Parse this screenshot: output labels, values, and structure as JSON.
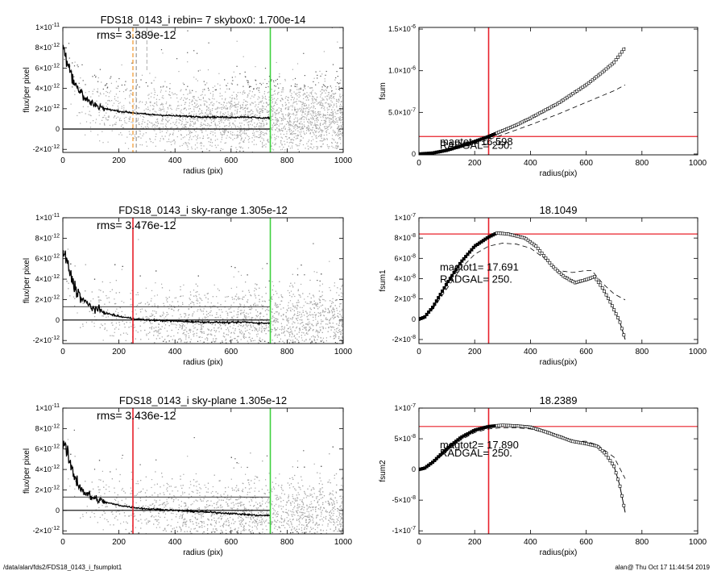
{
  "colors": {
    "scatter": "#a8a8a8",
    "profile": "#000000",
    "red": "#e8202a",
    "green": "#3ed13e",
    "orange": "#f0952a"
  },
  "footer": {
    "left": "/data/alan/fds2/FDS18_0143_i_fsumplot1",
    "right": "alan@  Thu Oct 17 11:44:54 2019"
  },
  "chart_data": [
    {
      "id": "p1",
      "type": "scatter",
      "title": "FDS18_0143_i rebin= 7   skybox0:  1.700e-14",
      "annotation": "rms= 3.389e-12",
      "xlabel": "radius (pix)",
      "ylabel": "flux/per pixel",
      "xlim": [
        0,
        1000
      ],
      "ylim": [
        -2.3e-12,
        1e-11
      ],
      "xticks": [
        0,
        200,
        400,
        600,
        800,
        1000
      ],
      "yticks": [
        {
          "v": -2e-12,
          "m": "-2",
          "e": "-12"
        },
        {
          "v": 0,
          "m": "0",
          "e": ""
        },
        {
          "v": 2e-12,
          "m": "2",
          "e": "-12"
        },
        {
          "v": 4e-12,
          "m": "4",
          "e": "-12"
        },
        {
          "v": 6e-12,
          "m": "6",
          "e": "-12"
        },
        {
          "v": 8e-12,
          "m": "8",
          "e": "-12"
        },
        {
          "v": 1e-11,
          "m": "1",
          "e": "-11",
          "p": "10"
        }
      ],
      "profile": [
        [
          0,
          8e-12
        ],
        [
          5,
          7.7e-12
        ],
        [
          10,
          7.3e-12
        ],
        [
          20,
          6.5e-12
        ],
        [
          30,
          5.5e-12
        ],
        [
          40,
          4.7e-12
        ],
        [
          60,
          3.7e-12
        ],
        [
          80,
          3e-12
        ],
        [
          100,
          2.6e-12
        ],
        [
          150,
          2e-12
        ],
        [
          200,
          1.75e-12
        ],
        [
          250,
          1.6e-12
        ],
        [
          300,
          1.45e-12
        ],
        [
          400,
          1.3e-12
        ],
        [
          500,
          1.2e-12
        ],
        [
          600,
          1.15e-12
        ],
        [
          650,
          1.2e-12
        ],
        [
          700,
          1.1e-12
        ],
        [
          740,
          1.1e-12
        ]
      ],
      "hlines": [
        {
          "y": 0,
          "color": "#000000",
          "x0": 0,
          "x1": 740
        }
      ],
      "vlines": [
        {
          "x": 740,
          "color": "#3ed13e"
        },
        {
          "x": 250,
          "color": "#f0952a",
          "dash": true
        },
        {
          "x": 262,
          "color": "#999999",
          "dash": true
        },
        {
          "x": 300,
          "color": "#bbbbbb",
          "dash": true,
          "short": true
        }
      ]
    },
    {
      "id": "p2",
      "type": "line",
      "xlabel": "radius(pix)",
      "ylabel": "fsum",
      "xlim": [
        0,
        1000
      ],
      "ylim": [
        -1e-08,
        1.52e-06
      ],
      "xticks": [
        0,
        200,
        400,
        600,
        800,
        1000
      ],
      "yticks": [
        {
          "v": 0,
          "m": "0",
          "e": ""
        },
        {
          "v": 5e-07,
          "m": "5.0",
          "e": "-7"
        },
        {
          "v": 1e-06,
          "m": "1.0",
          "e": "-6"
        },
        {
          "v": 1.5e-06,
          "m": "1.5",
          "e": "-6"
        }
      ],
      "solid": [
        [
          0,
          0
        ],
        [
          50,
          1.2e-08
        ],
        [
          100,
          4.5e-08
        ],
        [
          150,
          9.5e-08
        ],
        [
          200,
          1.5e-07
        ],
        [
          250,
          2.1e-07
        ],
        [
          300,
          2.8e-07
        ],
        [
          350,
          3.5e-07
        ],
        [
          400,
          4.3e-07
        ],
        [
          450,
          5.2e-07
        ],
        [
          500,
          6.1e-07
        ],
        [
          550,
          7.2e-07
        ],
        [
          600,
          8.3e-07
        ],
        [
          650,
          9.6e-07
        ],
        [
          700,
          1.1e-06
        ],
        [
          740,
          1.28e-06
        ]
      ],
      "dashed": [
        [
          0,
          0
        ],
        [
          100,
          3.5e-08
        ],
        [
          200,
          1.2e-07
        ],
        [
          300,
          2.3e-07
        ],
        [
          400,
          3.5e-07
        ],
        [
          500,
          4.8e-07
        ],
        [
          600,
          6.2e-07
        ],
        [
          700,
          7.6e-07
        ],
        [
          740,
          8.3e-07
        ]
      ],
      "hlines": [
        {
          "y": 2.1e-07,
          "color": "#e8202a"
        }
      ],
      "vlines": [
        {
          "x": 250,
          "color": "#e8202a"
        }
      ],
      "labels": [
        {
          "text": "magtot=  16.598",
          "x": 75,
          "y": 1.05e-07
        },
        {
          "text": "RADGAL=    250.",
          "x": 75,
          "y": 6.5e-08
        }
      ]
    },
    {
      "id": "p3",
      "type": "scatter",
      "title": "FDS18_0143_i sky-range  1.305e-12",
      "annotation": "rms= 3.476e-12",
      "xlabel": "radius (pix)",
      "ylabel": "flux/per pixel",
      "xlim": [
        0,
        1000
      ],
      "ylim": [
        -2.3e-12,
        1e-11
      ],
      "xticks": [
        0,
        200,
        400,
        600,
        800,
        1000
      ],
      "yticks": [
        {
          "v": -2e-12,
          "m": "-2",
          "e": "-12"
        },
        {
          "v": 0,
          "m": "0",
          "e": ""
        },
        {
          "v": 2e-12,
          "m": "2",
          "e": "-12"
        },
        {
          "v": 4e-12,
          "m": "4",
          "e": "-12"
        },
        {
          "v": 6e-12,
          "m": "6",
          "e": "-12"
        },
        {
          "v": 8e-12,
          "m": "8",
          "e": "-12"
        },
        {
          "v": 1e-11,
          "m": "1",
          "e": "-11",
          "p": "10"
        }
      ],
      "profile": [
        [
          0,
          6.7e-12
        ],
        [
          5,
          6.4e-12
        ],
        [
          10,
          6e-12
        ],
        [
          20,
          5.2e-12
        ],
        [
          30,
          4.2e-12
        ],
        [
          40,
          3.4e-12
        ],
        [
          60,
          2.4e-12
        ],
        [
          80,
          1.7e-12
        ],
        [
          100,
          1.3e-12
        ],
        [
          150,
          7e-13
        ],
        [
          200,
          3.5e-13
        ],
        [
          250,
          1.5e-13
        ],
        [
          300,
          0.0
        ],
        [
          400,
          -1e-13
        ],
        [
          500,
          -2e-13
        ],
        [
          600,
          -2.5e-13
        ],
        [
          650,
          -2e-13
        ],
        [
          700,
          -3e-13
        ],
        [
          740,
          -3e-13
        ]
      ],
      "hlines": [
        {
          "y": 0,
          "color": "#000000",
          "x0": 0,
          "x1": 740
        },
        {
          "y": 1.305e-12,
          "color": "#000000",
          "x0": 0,
          "x1": 740,
          "thin": true
        }
      ],
      "vlines": [
        {
          "x": 250,
          "color": "#e8202a"
        },
        {
          "x": 740,
          "color": "#3ed13e"
        }
      ]
    },
    {
      "id": "p4",
      "type": "line",
      "title": "18.1049",
      "xlabel": "radius(pix)",
      "ylabel": "fsum1",
      "xlim": [
        0,
        1000
      ],
      "ylim": [
        -2.4e-08,
        1e-07
      ],
      "xticks": [
        0,
        200,
        400,
        600,
        800,
        1000
      ],
      "yticks": [
        {
          "v": -2e-08,
          "m": "-2",
          "e": "-8"
        },
        {
          "v": 0,
          "m": "0",
          "e": ""
        },
        {
          "v": 2e-08,
          "m": "2",
          "e": "-8"
        },
        {
          "v": 4e-08,
          "m": "4",
          "e": "-8"
        },
        {
          "v": 6e-08,
          "m": "6",
          "e": "-8"
        },
        {
          "v": 8e-08,
          "m": "8",
          "e": "-8"
        },
        {
          "v": 1e-07,
          "m": "1",
          "e": "-7",
          "p": "10"
        }
      ],
      "solid": [
        [
          0,
          0
        ],
        [
          20,
          2e-09
        ],
        [
          50,
          1.2e-08
        ],
        [
          100,
          3.5e-08
        ],
        [
          150,
          5.6e-08
        ],
        [
          200,
          7.2e-08
        ],
        [
          250,
          8.1e-08
        ],
        [
          280,
          8.5e-08
        ],
        [
          320,
          8.4e-08
        ],
        [
          380,
          8e-08
        ],
        [
          420,
          7.2e-08
        ],
        [
          450,
          6.2e-08
        ],
        [
          480,
          5.2e-08
        ],
        [
          520,
          4.2e-08
        ],
        [
          560,
          3.6e-08
        ],
        [
          600,
          3.9e-08
        ],
        [
          630,
          4.2e-08
        ],
        [
          660,
          3e-08
        ],
        [
          690,
          1.5e-08
        ],
        [
          720,
          -2e-09
        ],
        [
          740,
          -2e-08
        ]
      ],
      "dashed": [
        [
          0,
          0
        ],
        [
          50,
          1e-08
        ],
        [
          100,
          3e-08
        ],
        [
          150,
          5e-08
        ],
        [
          200,
          6.4e-08
        ],
        [
          250,
          7.2e-08
        ],
        [
          300,
          7.5e-08
        ],
        [
          350,
          7.4e-08
        ],
        [
          400,
          7e-08
        ],
        [
          450,
          6e-08
        ],
        [
          500,
          4.8e-08
        ],
        [
          550,
          4.6e-08
        ],
        [
          600,
          4.8e-08
        ],
        [
          620,
          4.8e-08
        ],
        [
          660,
          3.5e-08
        ],
        [
          700,
          2.5e-08
        ],
        [
          740,
          1.9e-08
        ]
      ],
      "hlines": [
        {
          "y": 8.4e-08,
          "color": "#e8202a"
        }
      ],
      "vlines": [
        {
          "x": 250,
          "color": "#e8202a"
        }
      ],
      "labels": [
        {
          "text": "magtot1=  17.691",
          "x": 75,
          "y": 4.8e-08
        },
        {
          "text": "RADGAL=    250.",
          "x": 75,
          "y": 3.6e-08
        }
      ]
    },
    {
      "id": "p5",
      "type": "scatter",
      "title": "FDS18_0143_i sky-plane  1.305e-12",
      "annotation": "rms= 3.436e-12",
      "xlabel": "radius (pix)",
      "ylabel": "flux/per pixel",
      "xlim": [
        0,
        1000
      ],
      "ylim": [
        -2.3e-12,
        1e-11
      ],
      "xticks": [
        0,
        200,
        400,
        600,
        800,
        1000
      ],
      "yticks": [
        {
          "v": -2e-12,
          "m": "-2",
          "e": "-12"
        },
        {
          "v": 0,
          "m": "0",
          "e": ""
        },
        {
          "v": 2e-12,
          "m": "2",
          "e": "-12"
        },
        {
          "v": 4e-12,
          "m": "4",
          "e": "-12"
        },
        {
          "v": 6e-12,
          "m": "6",
          "e": "-12"
        },
        {
          "v": 8e-12,
          "m": "8",
          "e": "-12"
        },
        {
          "v": 1e-11,
          "m": "1",
          "e": "-11",
          "p": "10"
        }
      ],
      "profile": [
        [
          0,
          6.7e-12
        ],
        [
          5,
          6.4e-12
        ],
        [
          10,
          6e-12
        ],
        [
          20,
          5.2e-12
        ],
        [
          30,
          4.2e-12
        ],
        [
          40,
          3.4e-12
        ],
        [
          60,
          2.4e-12
        ],
        [
          80,
          1.7e-12
        ],
        [
          100,
          1.3e-12
        ],
        [
          150,
          8e-13
        ],
        [
          200,
          5e-13
        ],
        [
          250,
          3e-13
        ],
        [
          300,
          1.5e-13
        ],
        [
          400,
          0.0
        ],
        [
          500,
          -1.5e-13
        ],
        [
          600,
          -3e-13
        ],
        [
          650,
          -4e-13
        ],
        [
          700,
          -5e-13
        ],
        [
          740,
          -5e-13
        ]
      ],
      "hlines": [
        {
          "y": 0,
          "color": "#000000",
          "x0": 0,
          "x1": 740
        },
        {
          "y": 1.305e-12,
          "color": "#000000",
          "x0": 0,
          "x1": 740,
          "thin": true
        }
      ],
      "vlines": [
        {
          "x": 250,
          "color": "#e8202a"
        },
        {
          "x": 740,
          "color": "#3ed13e"
        }
      ]
    },
    {
      "id": "p6",
      "type": "line",
      "title": "18.2389",
      "xlabel": "radius(pix)",
      "ylabel": "fsum2",
      "xlim": [
        0,
        1000
      ],
      "ylim": [
        -1.05e-07,
        1e-07
      ],
      "xticks": [
        0,
        200,
        400,
        600,
        800,
        1000
      ],
      "yticks": [
        {
          "v": -1e-07,
          "m": "-1",
          "e": "-7",
          "p": "10"
        },
        {
          "v": -5e-08,
          "m": "-5",
          "e": "-8"
        },
        {
          "v": 0,
          "m": "0",
          "e": ""
        },
        {
          "v": 5e-08,
          "m": "5",
          "e": "-8"
        },
        {
          "v": 1e-07,
          "m": "1",
          "e": "-7",
          "p": "10"
        }
      ],
      "solid": [
        [
          0,
          0
        ],
        [
          20,
          2e-09
        ],
        [
          50,
          1.2e-08
        ],
        [
          100,
          3.4e-08
        ],
        [
          150,
          5.2e-08
        ],
        [
          200,
          6.4e-08
        ],
        [
          250,
          7e-08
        ],
        [
          300,
          7.2e-08
        ],
        [
          350,
          7.1e-08
        ],
        [
          400,
          6.9e-08
        ],
        [
          450,
          6.2e-08
        ],
        [
          500,
          5.4e-08
        ],
        [
          550,
          4.6e-08
        ],
        [
          600,
          4.2e-08
        ],
        [
          640,
          3.8e-08
        ],
        [
          670,
          2.5e-08
        ],
        [
          700,
          5e-09
        ],
        [
          720,
          -2.5e-08
        ],
        [
          740,
          -7e-08
        ]
      ],
      "dashed": [
        [
          0,
          0
        ],
        [
          50,
          1e-08
        ],
        [
          100,
          3e-08
        ],
        [
          150,
          4.8e-08
        ],
        [
          200,
          6e-08
        ],
        [
          250,
          6.6e-08
        ],
        [
          300,
          6.8e-08
        ],
        [
          350,
          6.8e-08
        ],
        [
          400,
          6.6e-08
        ],
        [
          450,
          6e-08
        ],
        [
          500,
          5.2e-08
        ],
        [
          550,
          4.6e-08
        ],
        [
          600,
          4.6e-08
        ],
        [
          640,
          4e-08
        ],
        [
          700,
          2e-08
        ],
        [
          740,
          -1.5e-08
        ]
      ],
      "hlines": [
        {
          "y": 7e-08,
          "color": "#e8202a"
        }
      ],
      "vlines": [
        {
          "x": 250,
          "color": "#e8202a"
        }
      ],
      "labels": [
        {
          "text": "magtot2=  17.890",
          "x": 75,
          "y": 3.4e-08
        },
        {
          "text": "RADGAL=    250.",
          "x": 75,
          "y": 2.1e-08
        }
      ]
    }
  ]
}
